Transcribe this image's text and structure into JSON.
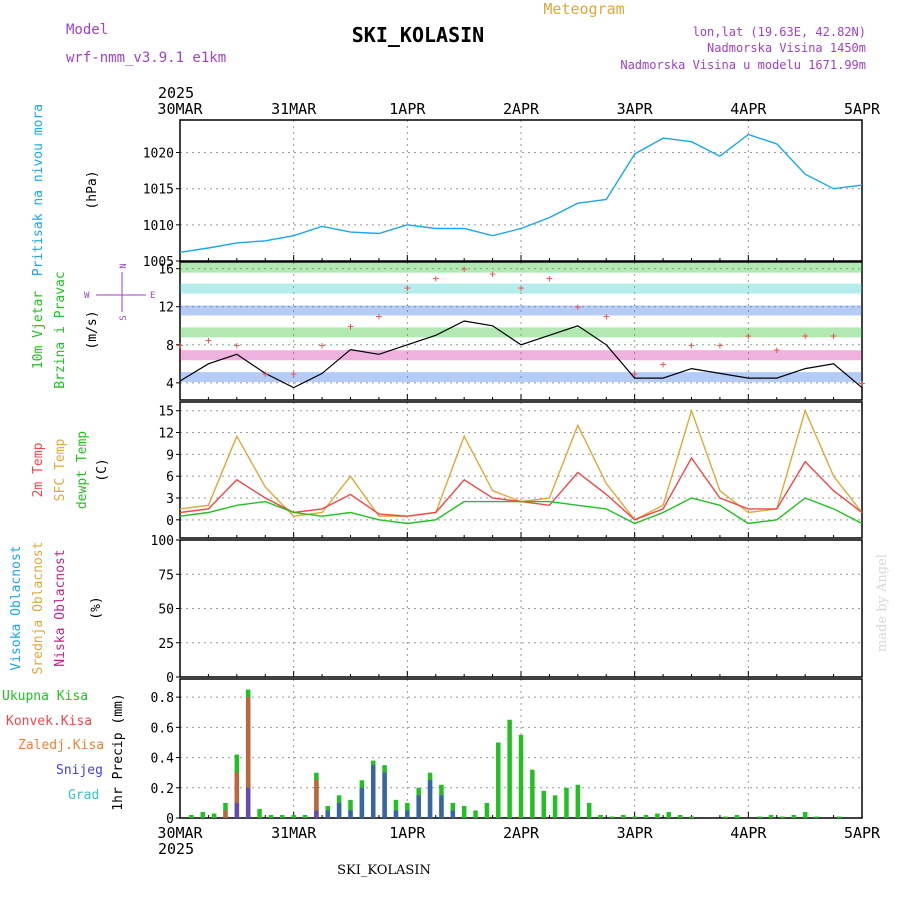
{
  "header": {
    "model_label": "Model",
    "model_name": "wrf-nmm_v3.9.1  e1km",
    "location_title": "SKI_KOLASIN",
    "meteogram_label": "Meteogram",
    "lonlat": "lon,lat (19.63E, 42.82N)",
    "altitude": "Nadmorska Visina 1450m",
    "model_altitude": "Nadmorska Visina u modelu 1671.99m",
    "year": "2025"
  },
  "footer": {
    "location": "SKI_KOLASIN",
    "year": "2025",
    "credit": "made by Angel"
  },
  "colors": {
    "pressure": "#1aa7ec",
    "t2m": "#f04848",
    "sfc_temp": "#e0a838",
    "dewpoint": "#22c022",
    "wind_speed": "#000000",
    "wind_gust": "#f04848",
    "cloud_high": "#1aa7ec",
    "cloud_mid": "#e0a838",
    "cloud_low": "#c0248c",
    "precip_total": "#22c022",
    "precip_conv": "#f04848",
    "precip_frozen": "#f08030",
    "precip_snow": "#4040e0",
    "precip_graupel": "#30c8c8",
    "purple_text": "#a040c8",
    "grid": "#999999"
  },
  "chart_data": [
    {
      "id": "pressure",
      "type": "line",
      "ylabel_1": "Pritisak na nivou mora",
      "ylabel_2": "(hPa)",
      "x_labels": [
        "30MAR",
        "31MAR",
        "1APR",
        "2APR",
        "3APR",
        "4APR",
        "5APR"
      ],
      "ylim": [
        1005,
        1024.5
      ],
      "yticks": [
        1005,
        1010,
        1015,
        1020
      ],
      "grid": true,
      "x": [
        0,
        0.25,
        0.5,
        0.75,
        1,
        1.25,
        1.5,
        1.75,
        2,
        2.25,
        2.5,
        2.75,
        3,
        3.25,
        3.5,
        3.75,
        4,
        4.25,
        4.5,
        4.75,
        5,
        5.25,
        5.5,
        5.75,
        6
      ],
      "series": [
        {
          "values": [
            1006.2,
            1006.8,
            1007.5,
            1007.8,
            1008.5,
            1009.8,
            1009.0,
            1008.8,
            1010.0,
            1009.5,
            1009.5,
            1008.5,
            1009.5,
            1011.0,
            1013.0,
            1013.5,
            1019.8,
            1022.0,
            1021.5,
            1019.5,
            1022.5,
            1021.2,
            1017.0,
            1015.0,
            1015.5
          ]
        }
      ]
    },
    {
      "id": "wind",
      "type": "line",
      "ylabel_1": "10m Vjetar",
      "ylabel_2": "Brzina i Pravac",
      "ylabel_3": "(m/s)",
      "compass": [
        "W",
        "E",
        "N",
        "S"
      ],
      "ylim": [
        2.2,
        16.7
      ],
      "yticks": [
        4,
        8,
        12,
        16
      ],
      "grid": true,
      "x": [
        0,
        0.25,
        0.5,
        0.75,
        1,
        1.25,
        1.5,
        1.75,
        2,
        2.25,
        2.5,
        2.75,
        3,
        3.25,
        3.5,
        3.75,
        4,
        4.25,
        4.5,
        4.75,
        5,
        5.25,
        5.5,
        5.75,
        6
      ],
      "series": [
        {
          "name": "speed",
          "values": [
            4.2,
            6.0,
            7.0,
            5.0,
            3.5,
            5.0,
            7.5,
            7.0,
            8.0,
            9.0,
            10.5,
            10.0,
            8.0,
            9.0,
            10.0,
            8.0,
            4.5,
            4.5,
            5.5,
            5.0,
            4.5,
            4.5,
            5.5,
            6.0,
            3.5
          ]
        },
        {
          "name": "gust",
          "values": [
            8.0,
            8.5,
            8.0,
            5.0,
            5.0,
            8.0,
            10.0,
            11.0,
            14.0,
            15.0,
            16.0,
            15.5,
            14.0,
            15.0,
            12.0,
            11.0,
            5.0,
            6.0,
            8.0,
            8.0,
            9.0,
            7.5,
            9.0,
            9.0,
            4.0
          ]
        }
      ]
    },
    {
      "id": "temperature",
      "type": "line",
      "ylabel_1": "2m Temp",
      "ylabel_2": "SFC Temp",
      "ylabel_3": "dewpt Temp",
      "ylabel_4": "(C)",
      "ylim": [
        -2.5,
        16.2
      ],
      "yticks": [
        0,
        3,
        6,
        9,
        12,
        15
      ],
      "grid": true,
      "x": [
        0,
        0.25,
        0.5,
        0.75,
        1,
        1.25,
        1.5,
        1.75,
        2,
        2.25,
        2.5,
        2.75,
        3,
        3.25,
        3.5,
        3.75,
        4,
        4.25,
        4.5,
        4.75,
        5,
        5.25,
        5.5,
        5.75,
        6
      ],
      "series": [
        {
          "name": "2m",
          "values": [
            1.0,
            1.5,
            5.5,
            3.0,
            1.0,
            1.5,
            3.5,
            0.8,
            0.5,
            1.0,
            5.5,
            3.0,
            2.5,
            2.0,
            6.5,
            3.5,
            0.0,
            1.5,
            8.5,
            3.0,
            1.5,
            1.5,
            8.0,
            4.0,
            1.0
          ]
        },
        {
          "name": "sfc",
          "values": [
            1.5,
            2.0,
            11.5,
            4.5,
            0.5,
            1.0,
            6.0,
            0.5,
            0.5,
            1.0,
            11.5,
            4.0,
            2.5,
            3.0,
            13.0,
            5.0,
            0.0,
            2.0,
            15.0,
            4.0,
            1.0,
            1.5,
            15.0,
            6.0,
            1.0
          ]
        },
        {
          "name": "dew",
          "values": [
            0.5,
            1.0,
            2.0,
            2.5,
            1.0,
            0.5,
            1.0,
            0.0,
            -0.5,
            0.0,
            2.5,
            2.5,
            2.5,
            2.5,
            2.0,
            1.5,
            -0.5,
            1.0,
            3.0,
            2.0,
            -0.5,
            0.0,
            3.0,
            1.5,
            -0.5
          ]
        }
      ]
    },
    {
      "id": "cloud",
      "type": "bar",
      "ylabel_1": "Visoka Oblacnost",
      "ylabel_2": "Srednja Oblacnost",
      "ylabel_3": "Niska Oblacnost",
      "ylabel_4": "(%)",
      "ylim": [
        0,
        100
      ],
      "yticks": [
        0,
        25,
        50,
        75,
        100
      ],
      "grid": true,
      "x": [
        0.1,
        0.2,
        0.3,
        0.4,
        0.5,
        0.6,
        0.7,
        0.8,
        0.9,
        1.0,
        1.1,
        1.2,
        1.3,
        1.4,
        1.5,
        1.6,
        1.7,
        1.8,
        1.9,
        2.0,
        2.1,
        2.2,
        2.3,
        2.4,
        2.5,
        2.6,
        2.7,
        2.8,
        2.9,
        3.0,
        3.1,
        3.2,
        3.3,
        3.4,
        3.5,
        3.6,
        3.7,
        3.8,
        3.9,
        4.0,
        4.1,
        4.2,
        4.3,
        4.4,
        4.5,
        4.6,
        4.7,
        4.8,
        4.9,
        5.0,
        5.1,
        5.2,
        5.3,
        5.4,
        5.5,
        5.6,
        5.7,
        5.8,
        5.9
      ],
      "series": [
        {
          "name": "high",
          "values": [
            0,
            0,
            0,
            0,
            0,
            0,
            0,
            0,
            0,
            0,
            0,
            0,
            0,
            0,
            0,
            0,
            0,
            0,
            0,
            0,
            0,
            0,
            0,
            0,
            0,
            0,
            0,
            0,
            0,
            0,
            0,
            0,
            0,
            0,
            0,
            0,
            0,
            0,
            0,
            0,
            0,
            0,
            0,
            0,
            0,
            0,
            0,
            0,
            0,
            0,
            0,
            0,
            0,
            0,
            0,
            0,
            0,
            0,
            0
          ]
        },
        {
          "name": "mid",
          "values": [
            0,
            0,
            0,
            0,
            0,
            0,
            0,
            0,
            0,
            0,
            0,
            0,
            0,
            0,
            0,
            0,
            0,
            0,
            0,
            0,
            0,
            0,
            0,
            0,
            0,
            0,
            0,
            0,
            0,
            0,
            0,
            0,
            0,
            0,
            0,
            0,
            0,
            0,
            0,
            0,
            0,
            0,
            0,
            0,
            0,
            0,
            0,
            0,
            0,
            0,
            0,
            0,
            0,
            0,
            0,
            0,
            0,
            0,
            0
          ]
        },
        {
          "name": "low",
          "values": [
            0,
            0,
            0,
            0,
            0,
            0,
            0,
            0,
            0,
            0,
            0,
            0,
            0,
            0,
            0,
            0,
            0,
            0,
            0,
            0,
            0,
            0,
            0,
            0,
            0,
            0,
            0,
            0,
            0,
            0,
            0,
            0,
            0,
            0,
            0,
            0,
            0,
            0,
            0,
            0,
            0,
            0,
            0,
            0,
            0,
            0,
            0,
            0,
            0,
            0,
            0,
            0,
            0,
            0,
            0,
            0,
            0,
            0,
            0
          ]
        }
      ]
    },
    {
      "id": "precip",
      "type": "bar",
      "ylabel_1": "1hr Precip (mm)",
      "legend": [
        "Ukupna Kisa",
        "Konvek.Kisa",
        "Zaledj.Kisa",
        "Snijeg",
        "Grad"
      ],
      "x_labels": [
        "30MAR",
        "31MAR",
        "1APR",
        "2APR",
        "3APR",
        "4APR",
        "5APR"
      ],
      "ylim": [
        0,
        0.92
      ],
      "yticks": [
        0,
        0.2,
        0.4,
        0.6,
        0.8
      ],
      "grid": true,
      "x": [
        0.1,
        0.2,
        0.3,
        0.4,
        0.5,
        0.6,
        0.7,
        0.8,
        0.9,
        1.0,
        1.1,
        1.2,
        1.3,
        1.4,
        1.5,
        1.6,
        1.7,
        1.8,
        1.9,
        2.0,
        2.1,
        2.2,
        2.3,
        2.4,
        2.5,
        2.6,
        2.7,
        2.8,
        2.9,
        3.0,
        3.1,
        3.2,
        3.3,
        3.4,
        3.5,
        3.6,
        3.7,
        3.8,
        3.9,
        4.0,
        4.1,
        4.2,
        4.3,
        4.4,
        4.5,
        4.6,
        4.7,
        4.8,
        4.9,
        5.0,
        5.1,
        5.2,
        5.3,
        5.4,
        5.5,
        5.6,
        5.7,
        5.8,
        5.9
      ],
      "series": [
        {
          "name": "total",
          "values": [
            0.02,
            0.04,
            0.03,
            0.1,
            0.42,
            0.85,
            0.06,
            0.02,
            0.02,
            0.02,
            0.02,
            0.3,
            0.08,
            0.15,
            0.12,
            0.25,
            0.38,
            0.35,
            0.12,
            0.1,
            0.2,
            0.3,
            0.22,
            0.1,
            0.08,
            0.05,
            0.1,
            0.5,
            0.65,
            0.55,
            0.32,
            0.18,
            0.15,
            0.2,
            0.22,
            0.1,
            0.02,
            0.01,
            0.02,
            0.01,
            0.02,
            0.03,
            0.04,
            0.02,
            0.01,
            0.0,
            0.0,
            0.01,
            0.02,
            0.0,
            0.01,
            0.02,
            0.01,
            0.02,
            0.04,
            0.01,
            0.0,
            0.01,
            0.0
          ]
        },
        {
          "name": "convective",
          "values": [
            0,
            0,
            0,
            0.05,
            0.3,
            0.8,
            0,
            0,
            0,
            0,
            0,
            0.25,
            0,
            0,
            0,
            0,
            0,
            0,
            0,
            0,
            0,
            0,
            0,
            0,
            0,
            0,
            0,
            0,
            0,
            0,
            0,
            0,
            0,
            0,
            0,
            0,
            0,
            0,
            0,
            0,
            0,
            0,
            0,
            0,
            0,
            0,
            0,
            0,
            0,
            0,
            0,
            0,
            0,
            0,
            0,
            0,
            0,
            0,
            0
          ]
        },
        {
          "name": "snow",
          "values": [
            0,
            0,
            0,
            0,
            0.1,
            0.2,
            0,
            0,
            0,
            0,
            0,
            0.05,
            0.05,
            0.1,
            0.05,
            0.2,
            0.35,
            0.3,
            0.05,
            0.05,
            0.15,
            0.25,
            0.15,
            0.05,
            0,
            0,
            0,
            0,
            0,
            0,
            0,
            0,
            0,
            0,
            0,
            0,
            0,
            0,
            0,
            0,
            0,
            0,
            0,
            0,
            0,
            0,
            0,
            0,
            0,
            0,
            0,
            0,
            0,
            0,
            0,
            0,
            0,
            0,
            0
          ]
        }
      ]
    }
  ]
}
